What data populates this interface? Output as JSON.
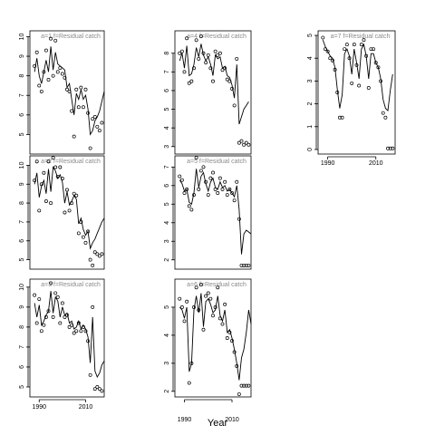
{
  "chart_data": {
    "type": "scatter",
    "xlabel": "Year",
    "x_tick_labels": [
      "1990",
      "2010"
    ],
    "x_ticks": [
      1990,
      2010
    ],
    "xlim": [
      1986,
      2018
    ],
    "panels": [
      {
        "label": "a=1   f=Residual catch",
        "ylim": [
          4.0,
          10.3
        ],
        "y_ticks": [
          5,
          6,
          7,
          8,
          9,
          10
        ],
        "y_tick_labels": [
          "5",
          "6",
          "7",
          "8",
          "9",
          "10"
        ],
        "show_x_axis": false,
        "observed": {
          "x": [
            1988,
            1989,
            1990,
            1991,
            1992,
            1993,
            1994,
            1995,
            1996,
            1997,
            1998,
            1999,
            2000,
            2001,
            2002,
            2003,
            2004,
            2005,
            2006,
            2007,
            2008,
            2009,
            2010,
            2011,
            2012,
            2013,
            2014,
            2015,
            2016,
            2017
          ],
          "y": [
            8.5,
            9.2,
            7.5,
            7.2,
            8.2,
            9.3,
            7.8,
            9.9,
            8.0,
            9.8,
            8.2,
            8.4,
            8.1,
            7.9,
            7.3,
            7.2,
            6.2,
            4.9,
            7.3,
            6.4,
            7.4,
            6.4,
            7.3,
            6.1,
            4.3,
            5.8,
            5.9,
            5.4,
            5.2,
            5.6
          ]
        },
        "fitted": {
          "x": [
            1988,
            1989,
            1990,
            1991,
            1992,
            1993,
            1994,
            1995,
            1996,
            1997,
            1998,
            1999,
            2000,
            2001,
            2002,
            2003,
            2004,
            2005,
            2006,
            2007,
            2008,
            2009,
            2010,
            2011,
            2012,
            2013,
            2014,
            2015,
            2016,
            2017,
            2018
          ],
          "y": [
            8.2,
            8.9,
            8.0,
            7.6,
            8.2,
            8.8,
            8.2,
            9.5,
            8.3,
            9.2,
            8.6,
            8.5,
            8.4,
            8.3,
            7.4,
            7.6,
            6.8,
            6.0,
            7.1,
            6.8,
            7.3,
            6.8,
            7.0,
            6.3,
            5.0,
            5.2,
            5.7,
            5.9,
            6.2,
            6.7,
            7.2
          ]
        }
      },
      {
        "label": "a=4   f=Residual catch",
        "ylim": [
          2.6,
          9.2
        ],
        "y_ticks": [
          3,
          4,
          5,
          6,
          7,
          8
        ],
        "y_tick_labels": [
          "3",
          "4",
          "5",
          "6",
          "7",
          "8"
        ],
        "show_x_axis": false,
        "observed": {
          "x": [
            1988,
            1989,
            1990,
            1991,
            1992,
            1993,
            1994,
            1995,
            1996,
            1997,
            1998,
            1999,
            2000,
            2001,
            2002,
            2003,
            2004,
            2005,
            2006,
            2007,
            2008,
            2009,
            2010,
            2011,
            2012,
            2013,
            2014,
            2015,
            2016,
            2017
          ],
          "y": [
            8.0,
            8.1,
            7.0,
            8.8,
            6.4,
            6.5,
            7.2,
            8.7,
            7.7,
            8.9,
            8.0,
            7.5,
            7.9,
            7.2,
            6.5,
            8.1,
            7.9,
            8.0,
            7.1,
            7.2,
            6.6,
            6.5,
            6.1,
            5.2,
            7.7,
            3.2,
            3.3,
            3.1,
            3.2,
            3.1
          ]
        },
        "fitted": {
          "x": [
            1988,
            1989,
            1990,
            1991,
            1992,
            1993,
            1994,
            1995,
            1996,
            1997,
            1998,
            1999,
            2000,
            2001,
            2002,
            2003,
            2004,
            2005,
            2006,
            2007,
            2008,
            2009,
            2010,
            2011,
            2012,
            2013,
            2014,
            2015,
            2016,
            2017
          ],
          "y": [
            7.6,
            8.0,
            7.2,
            8.4,
            6.8,
            6.9,
            7.4,
            8.3,
            7.8,
            8.5,
            7.9,
            7.6,
            7.8,
            7.4,
            6.8,
            7.9,
            7.7,
            7.8,
            7.2,
            7.3,
            6.8,
            6.7,
            6.3,
            5.6,
            7.4,
            4.2,
            4.6,
            5.0,
            5.2,
            5.4
          ]
        }
      },
      {
        "label": "a=7   f=Residual catch",
        "ylim": [
          -0.2,
          5.2
        ],
        "y_ticks": [
          0,
          1,
          2,
          3,
          4,
          5
        ],
        "y_tick_labels": [
          "0",
          "1",
          "2",
          "3",
          "4",
          "5"
        ],
        "show_x_axis": true,
        "observed": {
          "x": [
            1988,
            1989,
            1990,
            1991,
            1992,
            1993,
            1994,
            1995,
            1996,
            1997,
            1998,
            1999,
            2000,
            2001,
            2002,
            2003,
            2004,
            2005,
            2006,
            2007,
            2008,
            2009,
            2010,
            2011,
            2012,
            2013,
            2014,
            2015,
            2016,
            2017
          ],
          "y": [
            4.9,
            4.4,
            4.3,
            4.0,
            3.9,
            3.5,
            2.5,
            1.4,
            1.4,
            4.4,
            4.6,
            4.0,
            2.9,
            4.6,
            3.7,
            2.8,
            4.6,
            4.8,
            4.1,
            2.7,
            4.4,
            4.4,
            3.8,
            3.6,
            3.0,
            1.6,
            1.4,
            0.05,
            0.05,
            0.05
          ]
        },
        "fitted": {
          "x": [
            1988,
            1989,
            1990,
            1991,
            1992,
            1993,
            1994,
            1995,
            1996,
            1997,
            1998,
            1999,
            2000,
            2001,
            2002,
            2003,
            2004,
            2005,
            2006,
            2007,
            2008,
            2009,
            2010,
            2011,
            2012,
            2013,
            2014,
            2015,
            2016,
            2017
          ],
          "y": [
            4.8,
            4.5,
            4.3,
            4.1,
            4.0,
            3.6,
            2.6,
            1.8,
            2.4,
            4.2,
            4.4,
            4.1,
            3.3,
            4.4,
            3.8,
            3.1,
            4.4,
            4.6,
            4.1,
            3.1,
            4.2,
            4.2,
            3.8,
            3.6,
            3.1,
            2.2,
            1.8,
            1.7,
            2.6,
            3.3
          ]
        }
      },
      {
        "label": "a=2   f=Residual catch",
        "ylim": [
          4.5,
          10.5
        ],
        "y_ticks": [
          5,
          6,
          7,
          8,
          9,
          10
        ],
        "y_tick_labels": [
          "5",
          "6",
          "7",
          "8",
          "9",
          "10"
        ],
        "show_x_axis": false,
        "observed": {
          "x": [
            1988,
            1989,
            1990,
            1991,
            1992,
            1993,
            1994,
            1995,
            1996,
            1997,
            1998,
            1999,
            2000,
            2001,
            2002,
            2003,
            2004,
            2005,
            2006,
            2007,
            2008,
            2009,
            2010,
            2011,
            2012,
            2013,
            2014,
            2015,
            2016,
            2017
          ],
          "y": [
            9.2,
            10.2,
            7.6,
            9.0,
            9.6,
            8.1,
            10.2,
            8.0,
            10.4,
            9.9,
            9.4,
            9.9,
            9.3,
            7.5,
            8.7,
            7.6,
            8.0,
            8.5,
            8.4,
            6.4,
            7.0,
            6.2,
            5.9,
            6.5,
            5.0,
            4.7,
            5.4,
            5.3,
            5.2,
            5.3
          ]
        },
        "fitted": {
          "x": [
            1988,
            1989,
            1990,
            1991,
            1992,
            1993,
            1994,
            1995,
            1996,
            1997,
            1998,
            1999,
            2000,
            2001,
            2002,
            2003,
            2004,
            2005,
            2006,
            2007,
            2008,
            2009,
            2010,
            2011,
            2012,
            2013,
            2014,
            2015,
            2016,
            2017,
            2018
          ],
          "y": [
            9.0,
            9.6,
            8.3,
            8.9,
            9.2,
            8.5,
            9.8,
            8.6,
            9.9,
            9.7,
            9.3,
            9.5,
            9.1,
            8.0,
            8.6,
            7.9,
            8.1,
            8.4,
            8.2,
            6.9,
            7.2,
            6.6,
            6.3,
            6.5,
            5.6,
            5.9,
            6.1,
            6.4,
            6.7,
            7.0,
            7.2
          ]
        }
      },
      {
        "label": "a=5   f=Residual catch",
        "ylim": [
          1.5,
          7.6
        ],
        "y_ticks": [
          2,
          3,
          4,
          5,
          6,
          7
        ],
        "y_tick_labels": [
          "2",
          "3",
          "4",
          "5",
          "6",
          "7"
        ],
        "show_x_axis": false,
        "observed": {
          "x": [
            1988,
            1989,
            1990,
            1991,
            1992,
            1993,
            1994,
            1995,
            1996,
            1997,
            1998,
            1999,
            2000,
            2001,
            2002,
            2003,
            2004,
            2005,
            2006,
            2007,
            2008,
            2009,
            2010,
            2011,
            2012,
            2013,
            2014,
            2015,
            2016,
            2017
          ],
          "y": [
            6.5,
            6.3,
            5.6,
            5.8,
            4.9,
            4.7,
            5.5,
            7.5,
            5.8,
            6.8,
            7.0,
            6.2,
            5.5,
            6.4,
            6.7,
            5.8,
            5.6,
            6.4,
            5.8,
            6.2,
            5.5,
            5.8,
            5.6,
            5.2,
            6.2,
            4.2,
            1.7,
            1.7,
            1.7,
            1.7
          ]
        },
        "fitted": {
          "x": [
            1988,
            1989,
            1990,
            1991,
            1992,
            1993,
            1994,
            1995,
            1996,
            1997,
            1998,
            1999,
            2000,
            2001,
            2002,
            2003,
            2004,
            2005,
            2006,
            2007,
            2008,
            2009,
            2010,
            2011,
            2012,
            2013,
            2014,
            2015,
            2016,
            2017,
            2018
          ],
          "y": [
            6.3,
            6.1,
            5.7,
            5.8,
            5.1,
            5.0,
            5.6,
            6.9,
            5.9,
            6.5,
            6.7,
            6.1,
            5.7,
            6.2,
            6.4,
            5.9,
            5.8,
            6.2,
            5.9,
            6.0,
            5.7,
            5.8,
            5.6,
            5.4,
            6.0,
            4.7,
            2.3,
            3.4,
            3.6,
            3.5,
            3.4
          ]
        }
      },
      {
        "label": "a=3   f=Residual catch",
        "ylim": [
          4.5,
          10.4
        ],
        "y_ticks": [
          5,
          6,
          7,
          8,
          9,
          10
        ],
        "y_tick_labels": [
          "5",
          "6",
          "7",
          "8",
          "9",
          "10"
        ],
        "show_x_axis": true,
        "observed": {
          "x": [
            1988,
            1989,
            1990,
            1991,
            1992,
            1993,
            1994,
            1995,
            1996,
            1997,
            1998,
            1999,
            2000,
            2001,
            2002,
            2003,
            2004,
            2005,
            2006,
            2007,
            2008,
            2009,
            2010,
            2011,
            2012,
            2013,
            2014,
            2015,
            2016,
            2017
          ],
          "y": [
            9.6,
            8.2,
            9.4,
            7.8,
            8.1,
            8.5,
            8.8,
            10.2,
            8.5,
            9.7,
            9.5,
            8.2,
            9.2,
            8.5,
            8.6,
            8.0,
            8.1,
            7.7,
            7.8,
            8.2,
            7.8,
            8.0,
            7.8,
            7.3,
            5.6,
            9.0,
            4.9,
            5.0,
            4.9,
            4.8
          ]
        },
        "fitted": {
          "x": [
            1988,
            1989,
            1990,
            1991,
            1992,
            1993,
            1994,
            1995,
            1996,
            1997,
            1998,
            1999,
            2000,
            2001,
            2002,
            2003,
            2004,
            2005,
            2006,
            2007,
            2008,
            2009,
            2010,
            2011,
            2012,
            2013,
            2014,
            2015,
            2016,
            2017,
            2018
          ],
          "y": [
            9.2,
            8.5,
            9.1,
            8.1,
            8.3,
            8.6,
            8.8,
            9.8,
            8.7,
            9.5,
            9.3,
            8.5,
            9.0,
            8.6,
            8.7,
            8.2,
            8.3,
            7.9,
            8.0,
            8.3,
            7.9,
            8.1,
            7.9,
            7.5,
            6.2,
            8.5,
            5.8,
            5.5,
            5.7,
            6.1,
            6.3
          ]
        }
      },
      {
        "label": "a=6   f=Residual catch",
        "ylim": [
          1.8,
          6.0
        ],
        "y_ticks": [
          2,
          3,
          4,
          5
        ],
        "y_tick_labels": [
          "2",
          "3",
          "4",
          "5"
        ],
        "show_x_axis": true,
        "observed": {
          "x": [
            1988,
            1989,
            1990,
            1991,
            1992,
            1993,
            1994,
            1995,
            1996,
            1997,
            1998,
            1999,
            2000,
            2001,
            2002,
            2003,
            2004,
            2005,
            2006,
            2007,
            2008,
            2009,
            2010,
            2011,
            2012,
            2013,
            2014,
            2015,
            2016,
            2017
          ],
          "y": [
            5.3,
            5.0,
            4.5,
            5.2,
            2.3,
            3.0,
            5.0,
            5.7,
            4.9,
            5.8,
            4.2,
            5.4,
            5.5,
            5.3,
            4.7,
            5.0,
            5.7,
            4.6,
            4.4,
            5.1,
            3.9,
            4.1,
            3.8,
            3.4,
            2.9,
            1.9,
            2.2,
            2.2,
            2.2,
            2.2
          ]
        },
        "fitted": {
          "x": [
            1988,
            1989,
            1990,
            1991,
            1992,
            1993,
            1994,
            1995,
            1996,
            1997,
            1998,
            1999,
            2000,
            2001,
            2002,
            2003,
            2004,
            2005,
            2006,
            2007,
            2008,
            2009,
            2010,
            2011,
            2012,
            2013,
            2014,
            2015,
            2016,
            2017,
            2018
          ],
          "y": [
            5.0,
            4.9,
            4.6,
            5.0,
            2.7,
            3.0,
            4.9,
            5.4,
            4.8,
            5.5,
            4.3,
            5.2,
            5.3,
            5.1,
            4.8,
            4.9,
            5.4,
            4.7,
            4.5,
            4.9,
            4.1,
            4.2,
            3.9,
            3.5,
            3.0,
            2.4,
            3.2,
            3.5,
            4.1,
            4.9,
            4.4
          ]
        }
      }
    ]
  }
}
